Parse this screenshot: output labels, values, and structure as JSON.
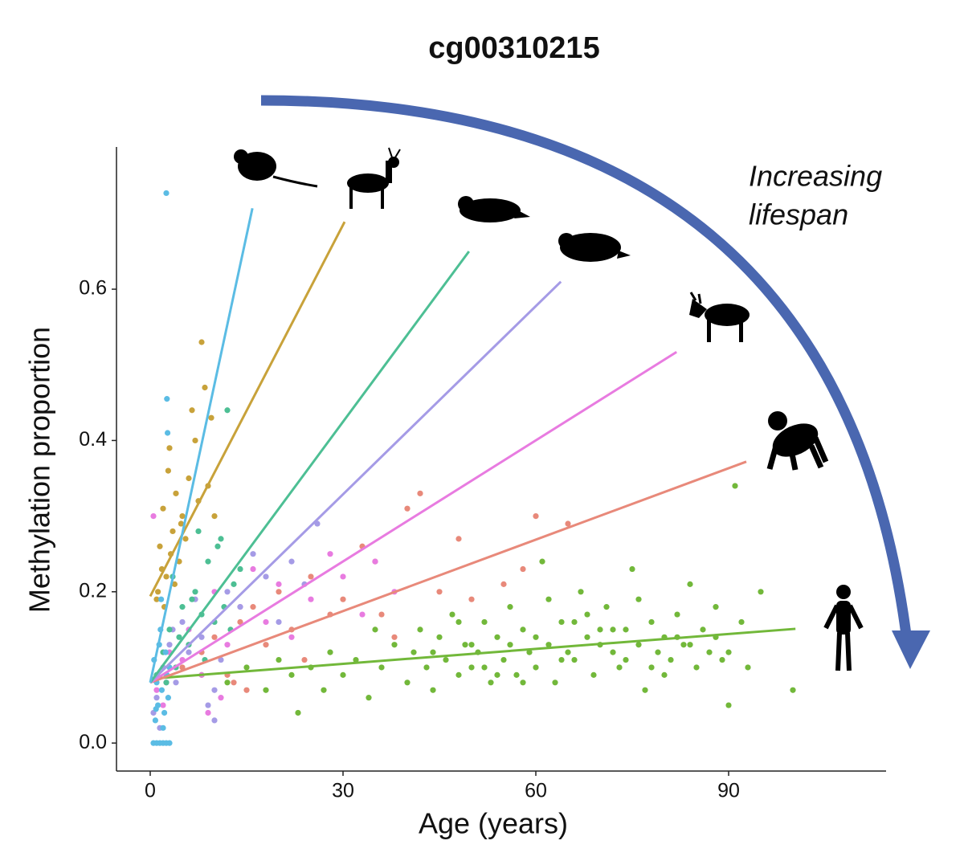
{
  "chart_data": {
    "type": "scatter",
    "title": "cg00310215",
    "x_label": "Age (years)",
    "y_label": "Methylation proportion",
    "annotation": [
      "Increasing",
      "lifespan"
    ],
    "xlim": [
      -5.25,
      114.5
    ],
    "ylim": [
      -0.037,
      0.788
    ],
    "xticks": [
      0,
      30,
      60,
      90
    ],
    "yticks": [
      {
        "value": 0,
        "label": "0.0"
      },
      {
        "value": 0.2,
        "label": "0.2"
      },
      {
        "value": 0.4,
        "label": "0.4"
      },
      {
        "value": 0.6,
        "label": "0.6"
      }
    ],
    "grid": false,
    "series": [
      {
        "color": "#72b83a",
        "x": [
          8,
          12,
          15,
          18,
          20,
          22,
          23,
          25,
          27,
          28,
          30,
          32,
          34,
          35,
          36,
          38,
          40,
          41,
          42,
          43,
          44,
          45,
          46,
          47,
          48,
          49,
          50,
          51,
          52,
          53,
          54,
          55,
          56,
          57,
          58,
          59,
          60,
          61,
          62,
          63,
          64,
          65,
          66,
          67,
          68,
          69,
          70,
          71,
          72,
          73,
          74,
          75,
          76,
          77,
          78,
          79,
          80,
          81,
          82,
          83,
          84,
          85,
          86,
          87,
          88,
          89,
          90,
          91,
          92,
          93,
          95,
          100,
          44,
          48,
          52,
          56,
          60,
          64,
          68,
          72,
          76,
          80,
          84,
          88,
          50,
          58,
          66,
          74,
          82,
          90,
          54,
          62,
          70,
          78
        ],
        "values": [
          0.09,
          0.08,
          0.1,
          0.07,
          0.11,
          0.09,
          0.04,
          0.1,
          0.07,
          0.12,
          0.09,
          0.11,
          0.06,
          0.15,
          0.1,
          0.13,
          0.08,
          0.12,
          0.15,
          0.1,
          0.07,
          0.14,
          0.11,
          0.17,
          0.09,
          0.13,
          0.1,
          0.12,
          0.16,
          0.08,
          0.14,
          0.11,
          0.13,
          0.09,
          0.15,
          0.12,
          0.1,
          0.24,
          0.13,
          0.08,
          0.16,
          0.12,
          0.11,
          0.2,
          0.14,
          0.09,
          0.13,
          0.18,
          0.12,
          0.1,
          0.15,
          0.23,
          0.13,
          0.07,
          0.16,
          0.12,
          0.14,
          0.11,
          0.17,
          0.13,
          0.21,
          0.1,
          0.15,
          0.12,
          0.14,
          0.11,
          0.05,
          0.34,
          0.16,
          0.1,
          0.2,
          0.07,
          0.12,
          0.16,
          0.1,
          0.18,
          0.14,
          0.11,
          0.17,
          0.15,
          0.19,
          0.09,
          0.13,
          0.18,
          0.13,
          0.08,
          0.16,
          0.11,
          0.14,
          0.12,
          0.09,
          0.19,
          0.15,
          0.1
        ],
        "fit": {
          "x": [
            0,
            100.4
          ],
          "y": [
            0.085,
            0.151
          ]
        }
      },
      {
        "color": "#e8897a",
        "x": [
          5,
          8,
          10,
          12,
          14,
          16,
          18,
          20,
          22,
          25,
          28,
          30,
          33,
          35,
          38,
          40,
          42,
          45,
          48,
          50,
          55,
          58,
          60,
          65,
          15,
          24,
          13,
          36
        ],
        "values": [
          0.1,
          0.12,
          0.14,
          0.09,
          0.16,
          0.18,
          0.13,
          0.2,
          0.15,
          0.22,
          0.17,
          0.19,
          0.26,
          0.24,
          0.14,
          0.31,
          0.33,
          0.2,
          0.27,
          0.19,
          0.21,
          0.23,
          0.3,
          0.29,
          0.07,
          0.11,
          0.08,
          0.17
        ],
        "fit": {
          "x": [
            0,
            92.75
          ],
          "y": [
            0.08,
            0.372
          ]
        }
      },
      {
        "color": "#e87be0",
        "x": [
          0.5,
          1,
          2,
          3,
          4,
          6,
          8,
          10,
          12,
          14,
          16,
          18,
          20,
          22,
          25,
          28,
          30,
          33,
          35,
          38,
          9,
          11,
          2.5,
          5
        ],
        "values": [
          0.3,
          0.07,
          0.05,
          0.12,
          0.1,
          0.15,
          0.09,
          0.2,
          0.13,
          0.18,
          0.23,
          0.16,
          0.21,
          0.14,
          0.19,
          0.25,
          0.22,
          0.17,
          0.24,
          0.2,
          0.04,
          0.06,
          0.08,
          0.11
        ],
        "fit": {
          "x": [
            0,
            81.9
          ],
          "y": [
            0.08,
            0.517
          ]
        }
      },
      {
        "color": "#a59be6",
        "x": [
          0.5,
          1,
          2,
          3,
          4,
          5,
          6,
          7,
          8,
          10,
          11,
          12,
          14,
          16,
          18,
          20,
          22,
          24,
          26,
          10,
          9,
          1.5,
          2.5,
          3.5
        ],
        "values": [
          0.04,
          0.06,
          0.1,
          0.13,
          0.08,
          0.16,
          0.12,
          0.19,
          0.14,
          0.03,
          0.11,
          0.2,
          0.18,
          0.25,
          0.22,
          0.16,
          0.24,
          0.21,
          0.29,
          0.07,
          0.05,
          0.02,
          0.09,
          0.15
        ],
        "fit": {
          "x": [
            0,
            63.9
          ],
          "y": [
            0.08,
            0.61
          ]
        }
      },
      {
        "color": "#4dbf94",
        "x": [
          1,
          2,
          3,
          4,
          5,
          6,
          7,
          8,
          9,
          10,
          11,
          12,
          13,
          2.5,
          4.5,
          6.5,
          8.5,
          10.5,
          12.5,
          3.5,
          7.5,
          11.5,
          14
        ],
        "values": [
          0.09,
          0.12,
          0.15,
          0.1,
          0.18,
          0.13,
          0.2,
          0.17,
          0.24,
          0.16,
          0.27,
          0.44,
          0.21,
          0.08,
          0.14,
          0.19,
          0.11,
          0.26,
          0.15,
          0.22,
          0.28,
          0.18,
          0.23
        ],
        "fit": {
          "x": [
            0,
            49.6
          ],
          "y": [
            0.08,
            0.65
          ]
        }
      },
      {
        "color": "#c8a23a",
        "x": [
          1,
          1.5,
          2,
          2.5,
          3,
          3.5,
          4,
          4.5,
          5,
          5.5,
          6,
          7,
          8,
          8.5,
          9,
          10,
          1.2,
          2.8,
          3.2,
          4.8,
          6.5,
          7.5,
          2.2,
          9.5,
          1.8,
          3.8
        ],
        "values": [
          0.19,
          0.26,
          0.31,
          0.22,
          0.39,
          0.28,
          0.33,
          0.24,
          0.3,
          0.27,
          0.35,
          0.4,
          0.53,
          0.47,
          0.34,
          0.3,
          0.2,
          0.36,
          0.25,
          0.29,
          0.44,
          0.32,
          0.18,
          0.43,
          0.23,
          0.21
        ],
        "fit": {
          "x": [
            0,
            30.25
          ],
          "y": [
            0.194,
            0.689
          ]
        }
      },
      {
        "color": "#5bbce4",
        "x": [
          0.5,
          1,
          1.5,
          2,
          2.5,
          3,
          0.8,
          1.2,
          1.8,
          2.2,
          2.6,
          0.6,
          1.4,
          2.0,
          2.8,
          1.0,
          1.6,
          2.4,
          3.0,
          2.5,
          2.6,
          2.7,
          0.9,
          1.7
        ],
        "values": [
          0,
          0,
          0,
          0,
          0,
          0,
          0.03,
          0.05,
          0.07,
          0.04,
          0.09,
          0.11,
          0.13,
          0.02,
          0.06,
          0.08,
          0.15,
          0.12,
          0.1,
          0.727,
          0.455,
          0.41,
          0.045,
          0.19
        ],
        "fit": {
          "x": [
            0,
            15.9
          ],
          "y": [
            0.08,
            0.707
          ]
        }
      }
    ]
  }
}
